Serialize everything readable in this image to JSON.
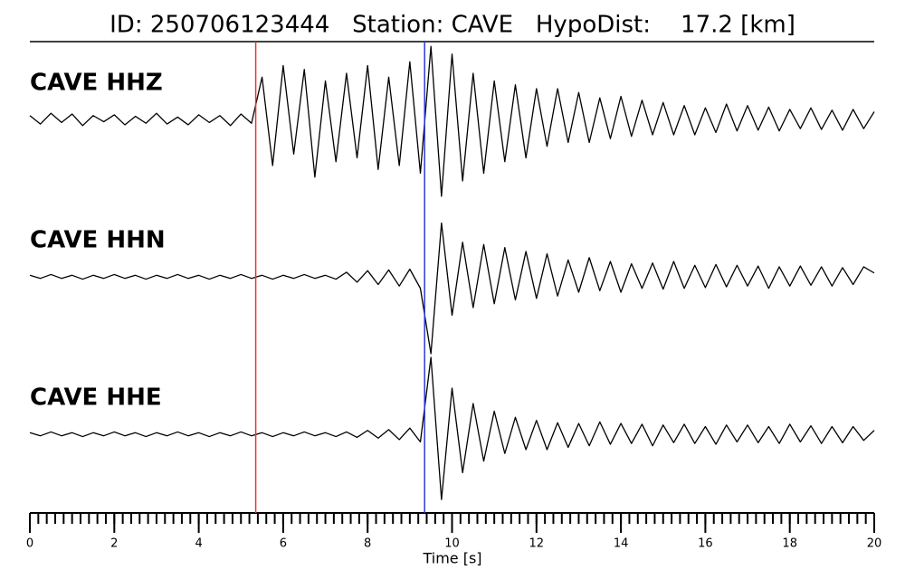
{
  "chart_data": {
    "type": "line",
    "title": "ID: 250706123444   Station: CAVE   HypoDist:    17.2 [km]",
    "xlabel": "Time [s]",
    "xlim": [
      0,
      20
    ],
    "ylim": [
      -1,
      1
    ],
    "xticks": [
      0,
      2,
      4,
      6,
      8,
      10,
      12,
      14,
      16,
      18,
      20
    ],
    "xminorticks": [
      0,
      0.2,
      0.4,
      0.6,
      0.8,
      1,
      1.2,
      1.4,
      1.6,
      1.8,
      2,
      2.2,
      2.4,
      2.6,
      2.8,
      3,
      3.2,
      3.4,
      3.6,
      3.8,
      4,
      4.2,
      4.4,
      4.6,
      4.8,
      5,
      5.2,
      5.4,
      5.6,
      5.8,
      6,
      6.2,
      6.4,
      6.6,
      6.8,
      7,
      7.2,
      7.4,
      7.6,
      7.8,
      8,
      8.2,
      8.4,
      8.6,
      8.8,
      9,
      9.2,
      9.4,
      9.6,
      9.8,
      10,
      10.2,
      10.4,
      10.6,
      10.8,
      11,
      11.2,
      11.4,
      11.6,
      11.8,
      12,
      12.2,
      12.4,
      12.6,
      12.8,
      13,
      13.2,
      13.4,
      13.6,
      13.8,
      14,
      14.2,
      14.4,
      14.6,
      14.8,
      15,
      15.2,
      15.4,
      15.6,
      15.8,
      16,
      16.2,
      16.4,
      16.6,
      16.8,
      17,
      17.2,
      17.4,
      17.6,
      17.8,
      18,
      18.2,
      18.4,
      18.6,
      18.8,
      19,
      19.2,
      19.4,
      19.6,
      19.8,
      20
    ],
    "label_color": "#4a9a0e",
    "vlines": [
      {
        "x": 5.35,
        "color": "#e8352a"
      },
      {
        "x": 9.35,
        "color": "#2a3ad0"
      }
    ],
    "x": [
      0,
      0.25,
      0.5,
      0.75,
      1,
      1.25,
      1.5,
      1.75,
      2,
      2.25,
      2.5,
      2.75,
      3,
      3.25,
      3.5,
      3.75,
      4,
      4.25,
      4.5,
      4.75,
      5,
      5.25,
      5.5,
      5.75,
      6,
      6.25,
      6.5,
      6.75,
      7,
      7.25,
      7.5,
      7.75,
      8,
      8.25,
      8.5,
      8.75,
      9,
      9.25,
      9.5,
      9.75,
      10,
      10.25,
      10.5,
      10.75,
      11,
      11.25,
      11.5,
      11.75,
      12,
      12.25,
      12.5,
      12.75,
      13,
      13.25,
      13.5,
      13.75,
      14,
      14.25,
      14.5,
      14.75,
      15,
      15.25,
      15.5,
      15.75,
      16,
      16.25,
      16.5,
      16.75,
      17,
      17.25,
      17.5,
      17.75,
      18,
      18.25,
      18.5,
      18.75,
      19,
      19.25,
      19.5,
      19.75,
      20
    ],
    "series": [
      {
        "name": "CAVE HHZ",
        "color": "#000000",
        "values": [
          0.05,
          -0.06,
          0.08,
          -0.04,
          0.07,
          -0.08,
          0.05,
          -0.03,
          0.06,
          -0.07,
          0.04,
          -0.05,
          0.08,
          -0.06,
          0.03,
          -0.07,
          0.06,
          -0.04,
          0.05,
          -0.08,
          0.07,
          -0.05,
          0.55,
          -0.6,
          0.7,
          -0.45,
          0.65,
          -0.75,
          0.5,
          -0.55,
          0.6,
          -0.5,
          0.7,
          -0.65,
          0.55,
          -0.6,
          0.75,
          -0.7,
          0.95,
          -1.0,
          0.85,
          -0.8,
          0.6,
          -0.7,
          0.5,
          -0.55,
          0.45,
          -0.5,
          0.4,
          -0.35,
          0.4,
          -0.3,
          0.35,
          -0.3,
          0.28,
          -0.25,
          0.3,
          -0.22,
          0.25,
          -0.2,
          0.22,
          -0.2,
          0.18,
          -0.2,
          0.15,
          -0.17,
          0.2,
          -0.15,
          0.18,
          -0.14,
          0.16,
          -0.15,
          0.13,
          -0.12,
          0.15,
          -0.13,
          0.12,
          -0.14,
          0.13,
          -0.12,
          0.1
        ]
      },
      {
        "name": "CAVE HHN",
        "color": "#000000",
        "values": [
          0.02,
          -0.02,
          0.03,
          -0.02,
          0.02,
          -0.03,
          0.02,
          -0.02,
          0.03,
          -0.02,
          0.02,
          -0.03,
          0.02,
          -0.02,
          0.03,
          -0.02,
          0.02,
          -0.03,
          0.02,
          -0.02,
          0.03,
          -0.02,
          0.02,
          -0.03,
          0.02,
          -0.02,
          0.03,
          -0.02,
          0.02,
          -0.03,
          0.06,
          -0.07,
          0.08,
          -0.1,
          0.09,
          -0.12,
          0.1,
          -0.15,
          -1.0,
          0.7,
          -0.5,
          0.45,
          -0.4,
          0.42,
          -0.35,
          0.38,
          -0.3,
          0.33,
          -0.28,
          0.3,
          -0.25,
          0.22,
          -0.2,
          0.25,
          -0.18,
          0.2,
          -0.2,
          0.17,
          -0.15,
          0.18,
          -0.16,
          0.2,
          -0.15,
          0.15,
          -0.14,
          0.16,
          -0.13,
          0.15,
          -0.12,
          0.14,
          -0.15,
          0.13,
          -0.12,
          0.14,
          -0.11,
          0.13,
          -0.12,
          0.12,
          -0.1,
          0.13,
          0.05
        ]
      },
      {
        "name": "CAVE HHE",
        "color": "#000000",
        "values": [
          0.02,
          -0.02,
          0.03,
          -0.02,
          0.02,
          -0.03,
          0.02,
          -0.02,
          0.03,
          -0.02,
          0.02,
          -0.03,
          0.02,
          -0.02,
          0.03,
          -0.02,
          0.02,
          -0.03,
          0.02,
          -0.02,
          0.03,
          -0.02,
          0.02,
          -0.03,
          0.02,
          -0.02,
          0.03,
          -0.02,
          0.02,
          -0.03,
          0.03,
          -0.04,
          0.05,
          -0.05,
          0.06,
          -0.07,
          0.08,
          -0.1,
          1.0,
          -0.85,
          0.6,
          -0.5,
          0.4,
          -0.35,
          0.3,
          -0.25,
          0.22,
          -0.2,
          0.18,
          -0.2,
          0.15,
          -0.17,
          0.14,
          -0.15,
          0.16,
          -0.13,
          0.14,
          -0.12,
          0.13,
          -0.15,
          0.12,
          -0.11,
          0.13,
          -0.12,
          0.1,
          -0.13,
          0.12,
          -0.1,
          0.12,
          -0.11,
          0.1,
          -0.12,
          0.13,
          -0.1,
          0.11,
          -0.12,
          0.1,
          -0.11,
          0.1,
          -0.08,
          0.05
        ]
      }
    ]
  }
}
